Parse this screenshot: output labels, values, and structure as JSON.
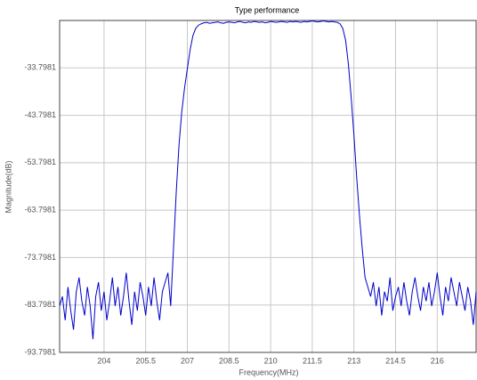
{
  "chart_data": {
    "type": "line",
    "title": "Type performance",
    "xlabel": "Frequency(MHz)",
    "ylabel": "Magnitude(dB)",
    "x": [
      202.4,
      202.5,
      202.6,
      202.7,
      202.8,
      202.9,
      203.0,
      203.1,
      203.2,
      203.3,
      203.4,
      203.5,
      203.6,
      203.7,
      203.8,
      203.9,
      204.0,
      204.1,
      204.2,
      204.3,
      204.4,
      204.5,
      204.6,
      204.7,
      204.8,
      204.9,
      205.0,
      205.1,
      205.2,
      205.3,
      205.4,
      205.5,
      205.6,
      205.7,
      205.8,
      205.9,
      206.0,
      206.1,
      206.2,
      206.3,
      206.4,
      206.5,
      206.6,
      206.7,
      206.8,
      206.9,
      207.0,
      207.1,
      207.2,
      207.3,
      207.4,
      207.5,
      207.6,
      207.7,
      207.8,
      207.9,
      208.0,
      208.1,
      208.2,
      208.3,
      208.4,
      208.5,
      208.6,
      208.7,
      208.8,
      208.9,
      209.0,
      209.1,
      209.2,
      209.3,
      209.4,
      209.5,
      209.6,
      209.7,
      209.8,
      209.9,
      210.0,
      210.1,
      210.2,
      210.3,
      210.4,
      210.5,
      210.6,
      210.7,
      210.8,
      210.9,
      211.0,
      211.1,
      211.2,
      211.3,
      211.4,
      211.5,
      211.6,
      211.7,
      211.8,
      211.9,
      212.0,
      212.1,
      212.2,
      212.3,
      212.4,
      212.5,
      212.6,
      212.7,
      212.8,
      212.9,
      213.0,
      213.1,
      213.2,
      213.3,
      213.4,
      213.5,
      213.6,
      213.7,
      213.8,
      213.9,
      214.0,
      214.1,
      214.2,
      214.3,
      214.4,
      214.5,
      214.6,
      214.7,
      214.8,
      214.9,
      215.0,
      215.1,
      215.2,
      215.3,
      215.4,
      215.5,
      215.6,
      215.7,
      215.8,
      215.9,
      216.0,
      216.1,
      216.2,
      216.3,
      216.4,
      216.5,
      216.6,
      216.7,
      216.8,
      216.9,
      217.0,
      217.1,
      217.2,
      217.3,
      217.4
    ],
    "series": [
      {
        "name": "Magnitude",
        "color": "#0000cc",
        "values": [
          -84,
          -82,
          -87,
          -80,
          -85,
          -89,
          -81,
          -78,
          -83,
          -86,
          -80,
          -84,
          -91,
          -82,
          -79,
          -85,
          -81,
          -87,
          -83,
          -78,
          -84,
          -80,
          -86,
          -82,
          -77,
          -83,
          -88,
          -81,
          -85,
          -79,
          -82,
          -86,
          -80,
          -84,
          -78,
          -83,
          -87,
          -81,
          -79,
          -77,
          -84,
          -72,
          -60,
          -50,
          -43,
          -38,
          -34,
          -30,
          -27,
          -25.5,
          -24.8,
          -24.5,
          -24.3,
          -24.2,
          -24.4,
          -24.3,
          -24.2,
          -24.1,
          -24.3,
          -24.4,
          -24.2,
          -24.1,
          -24.2,
          -24.3,
          -24.1,
          -24.0,
          -24.2,
          -24.3,
          -24.1,
          -24.2,
          -24.0,
          -24.1,
          -24.2,
          -24.1,
          -24.3,
          -24.2,
          -24.0,
          -24.1,
          -24.2,
          -24.1,
          -24.0,
          -24.1,
          -24.2,
          -24.0,
          -24.1,
          -24.0,
          -24.1,
          -24.2,
          -24.0,
          -24.1,
          -24.0,
          -23.9,
          -24.0,
          -24.1,
          -24.0,
          -23.9,
          -24.0,
          -24.1,
          -24.0,
          -24.1,
          -24.2,
          -24.5,
          -25.5,
          -28,
          -33,
          -40,
          -48,
          -57,
          -65,
          -72,
          -78,
          -80,
          -82,
          -79,
          -84,
          -80,
          -86,
          -81,
          -83,
          -78,
          -85,
          -82,
          -80,
          -84,
          -79,
          -83,
          -86,
          -81,
          -78,
          -82,
          -85,
          -80,
          -83,
          -79,
          -84,
          -81,
          -77,
          -82,
          -86,
          -80,
          -83,
          -78,
          -81,
          -84,
          -79,
          -82,
          -85,
          -80,
          -83,
          -88,
          -81
        ]
      }
    ],
    "xlim": [
      202.4,
      217.4
    ],
    "ylim": [
      -93.7981,
      -23.7981
    ],
    "xticks": [
      204,
      205.5,
      207,
      208.5,
      210,
      211.5,
      213,
      214.5,
      216
    ],
    "yticks": [
      -93.7981,
      -83.7981,
      -73.7981,
      -63.7981,
      -53.7981,
      -43.7981,
      -33.7981
    ],
    "grid": true
  }
}
